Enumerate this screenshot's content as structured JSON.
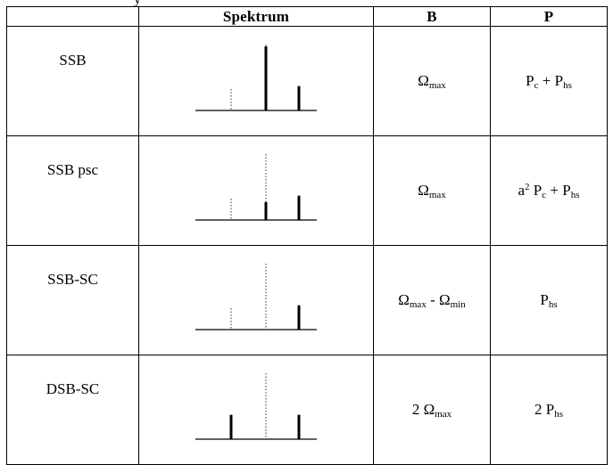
{
  "header": {
    "name": "",
    "spectrum": "Spektrum",
    "bandwidth": "B",
    "power": "P"
  },
  "rows": [
    {
      "name": "SSB",
      "bandwidth": {
        "base": "Ω",
        "sub": "max"
      },
      "power": {
        "p1": "P",
        "s1": "c",
        "mid": " + P",
        "s2": "hs"
      },
      "spectrum": {
        "lower": 0,
        "carrier": 1.0,
        "upper": 0.38,
        "lower_dotted": true
      }
    },
    {
      "name": "SSB psc",
      "bandwidth": {
        "base": "Ω",
        "sub": "max"
      },
      "power": {
        "pre": "a",
        "sup": "2",
        "p1": " P",
        "s1": "c",
        "mid": " + P",
        "s2": "hs"
      },
      "spectrum": {
        "lower": 0,
        "carrier": 0.28,
        "upper": 0.38,
        "lower_dotted": true
      }
    },
    {
      "name": "SSB-SC",
      "bandwidth": {
        "b1": "Ω",
        "s1": "max",
        "mid": " - Ω",
        "s2": "min"
      },
      "power": {
        "p1": "P",
        "s1": "hs"
      },
      "spectrum": {
        "lower": 0,
        "carrier": 0,
        "upper": 0.38,
        "lower_dotted": true
      }
    },
    {
      "name": "DSB-SC",
      "bandwidth": {
        "pre": "2 ",
        "base": "Ω",
        "sub": "max"
      },
      "power": {
        "pre": "2 ",
        "p1": "P",
        "s1": "hs"
      },
      "spectrum": {
        "lower": 0.38,
        "carrier": 0,
        "upper": 0.38,
        "lower_dotted": false
      }
    }
  ]
}
